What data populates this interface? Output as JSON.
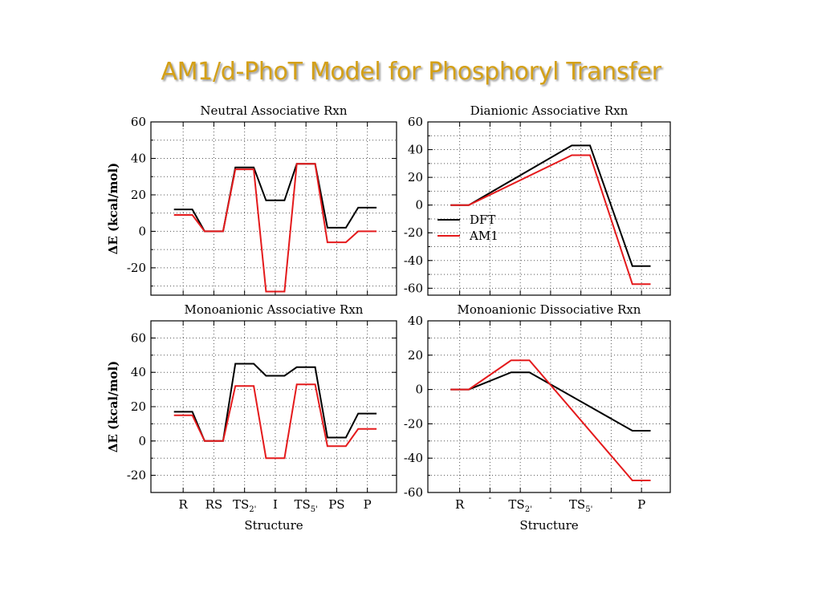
{
  "slide": {
    "title": "AM1/d-PhoT Model for Phosphoryl Transfer"
  },
  "colors": {
    "dft": "#000000",
    "am1": "#e41a1c",
    "title": "#D4A017"
  },
  "chart_data": [
    {
      "type": "line",
      "title": "Neutral Associative Rxn",
      "ylabel": "ΔE (kcal/mol)",
      "xlabel": "",
      "ylim": [
        -35,
        60
      ],
      "yticks": [
        60,
        40,
        20,
        0,
        -20
      ],
      "ytick_labels": [
        "60",
        "40",
        "20",
        "0",
        "-20"
      ],
      "categories": [
        "R",
        "RS",
        "TS2'",
        "I",
        "TS5'",
        "PS",
        "P"
      ],
      "xtick_labels": [],
      "grid": true,
      "series": [
        {
          "name": "DFT",
          "color": "#000000",
          "x": [
            -0.3,
            0.3,
            0.7,
            1.3,
            1.7,
            2.3,
            2.7,
            3.3,
            3.7,
            4.3,
            4.7,
            5.3,
            5.7,
            6.3
          ],
          "y": [
            12,
            12,
            0,
            0,
            35,
            35,
            17,
            17,
            37,
            37,
            2,
            2,
            13,
            13
          ]
        },
        {
          "name": "AM1",
          "color": "#e41a1c",
          "x": [
            -0.3,
            0.3,
            0.7,
            1.3,
            1.7,
            2.3,
            2.7,
            3.3,
            3.7,
            4.3,
            4.7,
            5.3,
            5.7,
            6.3
          ],
          "y": [
            9,
            9,
            0,
            0,
            34,
            34,
            -33,
            -33,
            37,
            37,
            -6,
            -6,
            0,
            0
          ]
        }
      ],
      "legend": null
    },
    {
      "type": "line",
      "title": "Dianionic Associative Rxn",
      "ylabel": "",
      "xlabel": "",
      "ylim": [
        -65,
        60
      ],
      "yticks": [
        60,
        40,
        20,
        0,
        -20,
        -40,
        -60
      ],
      "ytick_labels": [
        "60",
        "40",
        "20",
        "0",
        "-20",
        "-40",
        "-60"
      ],
      "categories": [
        "R",
        "-",
        "TS2'",
        "-",
        "TS5'",
        "-",
        "P"
      ],
      "xtick_labels": [],
      "grid": true,
      "series": [
        {
          "name": "DFT",
          "color": "#000000",
          "x": [
            -0.3,
            0.3,
            3.7,
            4.3,
            5.7,
            6.3
          ],
          "y": [
            0,
            0,
            43,
            43,
            -44,
            -44
          ]
        },
        {
          "name": "AM1",
          "color": "#e41a1c",
          "x": [
            -0.3,
            0.3,
            3.7,
            4.3,
            5.7,
            6.3
          ],
          "y": [
            0,
            0,
            36,
            36,
            -57,
            -57
          ]
        }
      ],
      "legend": {
        "placement": "middle-left",
        "entries": [
          "DFT",
          "AM1"
        ]
      }
    },
    {
      "type": "line",
      "title": "Monoanionic Associative Rxn",
      "ylabel": "ΔE (kcal/mol)",
      "xlabel": "Structure",
      "ylim": [
        -30,
        70
      ],
      "yticks": [
        60,
        40,
        20,
        0,
        -20
      ],
      "ytick_labels": [
        "60",
        "40",
        "20",
        "0",
        "-20"
      ],
      "categories": [
        "R",
        "RS",
        "TS2'",
        "I",
        "TS5'",
        "PS",
        "P"
      ],
      "xtick_labels": [
        {
          "main": "R"
        },
        {
          "main": "RS"
        },
        {
          "main": "TS",
          "sub": "2'"
        },
        {
          "main": "I"
        },
        {
          "main": "TS",
          "sub": "5'"
        },
        {
          "main": "PS"
        },
        {
          "main": "P"
        }
      ],
      "grid": true,
      "series": [
        {
          "name": "DFT",
          "color": "#000000",
          "x": [
            -0.3,
            0.3,
            0.7,
            1.3,
            1.7,
            2.3,
            2.7,
            3.3,
            3.7,
            4.3,
            4.7,
            5.3,
            5.7,
            6.3
          ],
          "y": [
            17,
            17,
            0,
            0,
            45,
            45,
            38,
            38,
            43,
            43,
            2,
            2,
            16,
            16
          ]
        },
        {
          "name": "AM1",
          "color": "#e41a1c",
          "x": [
            -0.3,
            0.3,
            0.7,
            1.3,
            1.7,
            2.3,
            2.7,
            3.3,
            3.7,
            4.3,
            4.7,
            5.3,
            5.7,
            6.3
          ],
          "y": [
            15,
            15,
            0,
            0,
            32,
            32,
            -10,
            -10,
            33,
            33,
            -3,
            -3,
            7,
            7
          ]
        }
      ],
      "legend": null
    },
    {
      "type": "line",
      "title": "Monoanionic Dissociative Rxn",
      "ylabel": "",
      "xlabel": "Structure",
      "ylim": [
        -60,
        40
      ],
      "yticks": [
        40,
        20,
        0,
        -20,
        -40,
        -60
      ],
      "ytick_labels": [
        "40",
        "20",
        "0",
        "-20",
        "-40",
        "-60"
      ],
      "categories": [
        "R",
        "-",
        "TS2'",
        "-",
        "TS5'",
        "-",
        "P"
      ],
      "xtick_labels": [
        {
          "main": "R"
        },
        {
          "main": "-"
        },
        {
          "main": "TS",
          "sub": "2'"
        },
        {
          "main": "-"
        },
        {
          "main": "TS",
          "sub": "5'"
        },
        {
          "main": "-"
        },
        {
          "main": "P"
        }
      ],
      "grid": true,
      "series": [
        {
          "name": "DFT",
          "color": "#000000",
          "x": [
            -0.3,
            0.3,
            1.7,
            2.3,
            5.7,
            6.3
          ],
          "y": [
            0,
            0,
            10,
            10,
            -24,
            -24
          ]
        },
        {
          "name": "AM1",
          "color": "#e41a1c",
          "x": [
            -0.3,
            0.3,
            1.7,
            2.3,
            5.7,
            6.3
          ],
          "y": [
            0,
            0,
            17,
            17,
            -53,
            -53
          ]
        }
      ],
      "legend": null
    }
  ]
}
